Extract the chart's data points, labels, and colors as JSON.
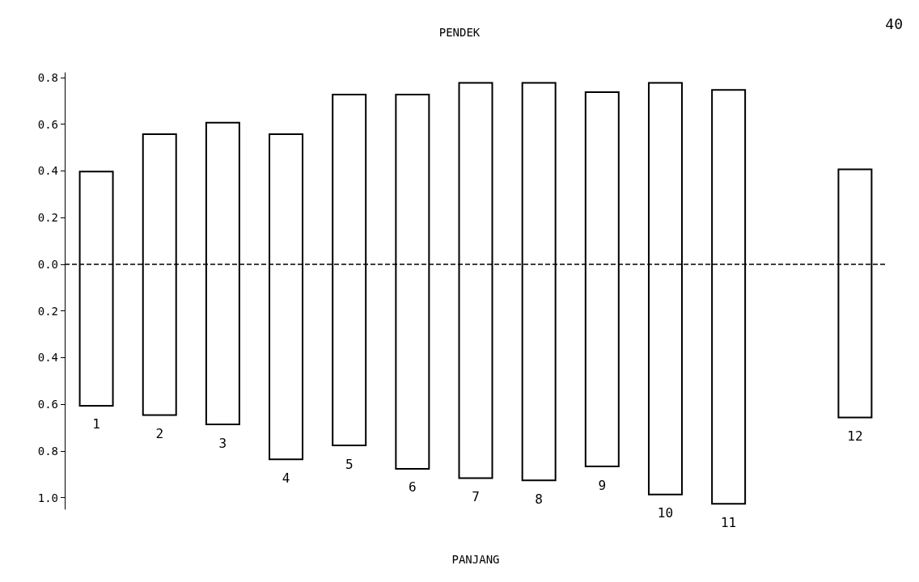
{
  "chart_data": {
    "type": "bar",
    "title": "PENDEK",
    "xlabel": "PANJANG",
    "annotations": [
      "40"
    ],
    "categories": [
      "1",
      "2",
      "3",
      "4",
      "5",
      "6",
      "7",
      "8",
      "9",
      "10",
      "11",
      null,
      "12"
    ],
    "values": [
      1.01,
      1.21,
      1.3,
      1.4,
      1.51,
      1.61,
      1.7,
      1.71,
      1.61,
      1.77,
      1.78,
      null,
      1.07
    ],
    "base": [
      -0.61,
      -0.65,
      -0.69,
      -0.84,
      -0.78,
      -0.88,
      -0.92,
      -0.93,
      -0.87,
      -0.99,
      -1.03,
      null,
      -0.66
    ],
    "color": "#000000",
    "ylim": [
      -1.05,
      0.82
    ],
    "yticks": [
      {
        "value": -1.0,
        "label": "1.0"
      },
      {
        "value": -0.8,
        "label": "0.8"
      },
      {
        "value": -0.6,
        "label": "0.6"
      },
      {
        "value": -0.4,
        "label": "0.4"
      },
      {
        "value": -0.2,
        "label": "0.2"
      },
      {
        "value": 0,
        "label": "0.0"
      },
      {
        "value": 0.2,
        "label": "0.2"
      },
      {
        "value": 0.4,
        "label": "0.4"
      },
      {
        "value": 0.6,
        "label": "0.6"
      },
      {
        "value": 0.8,
        "label": "0.8"
      }
    ],
    "ref_lines": [
      {
        "axis": "y",
        "value": 0,
        "line_style": "dashed"
      }
    ],
    "grid": false
  }
}
